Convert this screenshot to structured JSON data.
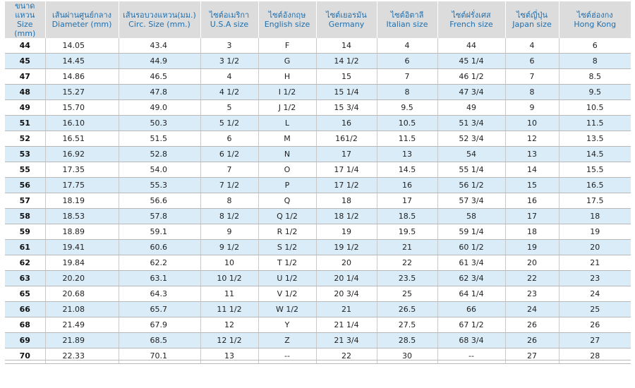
{
  "headers": [
    {
      "th": "ขนาดแหวน",
      "en": "Size (mm)"
    },
    {
      "th": "เส้นผ่านศูนย์กลาง",
      "en": "Diameter (mm)"
    },
    {
      "th": "เส้นรอบวงแหวน(มม.)",
      "en": "Circ. Size (mm.)"
    },
    {
      "th": "ไซต์อเมริกา",
      "en": "U.S.A size"
    },
    {
      "th": "ไซต์อังกฤษ",
      "en": "English size"
    },
    {
      "th": "ไซต์เยอรมัน",
      "en": "Germany"
    },
    {
      "th": "ไซต์อิตาลี",
      "en": "Italian size"
    },
    {
      "th": "ไซต์ฝรั่งเศส",
      "en": "French size"
    },
    {
      "th": "ไซต์ญี่ปุ่น",
      "en": "Japan size"
    },
    {
      "th": "ไซต์ฮ่องกง",
      "en": "Hong Kong"
    }
  ],
  "rows": [
    [
      "44",
      "14.05",
      "43.4",
      "3",
      "F",
      "14",
      "4",
      "44",
      "4",
      "6"
    ],
    [
      "45",
      "14.45",
      "44.9",
      "3 1/2",
      "G",
      "14 1/2",
      "6",
      "45 1/4",
      "6",
      "8"
    ],
    [
      "47",
      "14.86",
      "46.5",
      "4",
      "H",
      "15",
      "7",
      "46 1/2",
      "7",
      "8.5"
    ],
    [
      "48",
      "15.27",
      "47.8",
      "4 1/2",
      "I 1/2",
      "15 1/4",
      "8",
      "47 3/4",
      "8",
      "9.5"
    ],
    [
      "49",
      "15.70",
      "49.0",
      "5",
      "J 1/2",
      "15 3/4",
      "9.5",
      "49",
      "9",
      "10.5"
    ],
    [
      "51",
      "16.10",
      "50.3",
      "5 1/2",
      "L",
      "16",
      "10.5",
      "51 3/4",
      "10",
      "11.5"
    ],
    [
      "52",
      "16.51",
      "51.5",
      "6",
      "M",
      "161/2",
      "11.5",
      "52 3/4",
      "12",
      "13.5"
    ],
    [
      "53",
      "16.92",
      "52.8",
      "6 1/2",
      "N",
      "17",
      "13",
      "54",
      "13",
      "14.5"
    ],
    [
      "55",
      "17.35",
      "54.0",
      "7",
      "O",
      "17 1/4",
      "14.5",
      "55 1/4",
      "14",
      "15.5"
    ],
    [
      "56",
      "17.75",
      "55.3",
      "7 1/2",
      "P",
      "17 1/2",
      "16",
      "56 1/2",
      "15",
      "16.5"
    ],
    [
      "57",
      "18.19",
      "56.6",
      "8",
      "Q",
      "18",
      "17",
      "57 3/4",
      "16",
      "17.5"
    ],
    [
      "58",
      "18.53",
      "57.8",
      "8 1/2",
      "Q 1/2",
      "18 1/2",
      "18.5",
      "58",
      "17",
      "18"
    ],
    [
      "59",
      "18.89",
      "59.1",
      "9",
      "R 1/2",
      "19",
      "19.5",
      "59 1/4",
      "18",
      "19"
    ],
    [
      "61",
      "19.41",
      "60.6",
      "9 1/2",
      "S 1/2",
      "19 1/2",
      "21",
      "60 1/2",
      "19",
      "20"
    ],
    [
      "62",
      "19.84",
      "62.2",
      "10",
      "T 1/2",
      "20",
      "22",
      "61 3/4",
      "20",
      "21"
    ],
    [
      "63",
      "20.20",
      "63.1",
      "10 1/2",
      "U 1/2",
      "20 1/4",
      "23.5",
      "62 3/4",
      "22",
      "23"
    ],
    [
      "65",
      "20.68",
      "64.3",
      "11",
      "V 1/2",
      "20 3/4",
      "25",
      "64 1/4",
      "23",
      "24"
    ],
    [
      "66",
      "21.08",
      "65.7",
      "11 1/2",
      "W 1/2",
      "21",
      "26.5",
      "66",
      "24",
      "25"
    ],
    [
      "68",
      "21.49",
      "67.9",
      "12",
      "Y",
      "21 1/4",
      "27.5",
      "67 1/2",
      "26",
      "26"
    ],
    [
      "69",
      "21.89",
      "68.5",
      "12 1/2",
      "Z",
      "21 3/4",
      "28.5",
      "68 3/4",
      "26",
      "27"
    ],
    [
      "70",
      "22.33",
      "70.1",
      "13",
      "--",
      "22",
      "30",
      "--",
      "27",
      "28"
    ]
  ]
}
